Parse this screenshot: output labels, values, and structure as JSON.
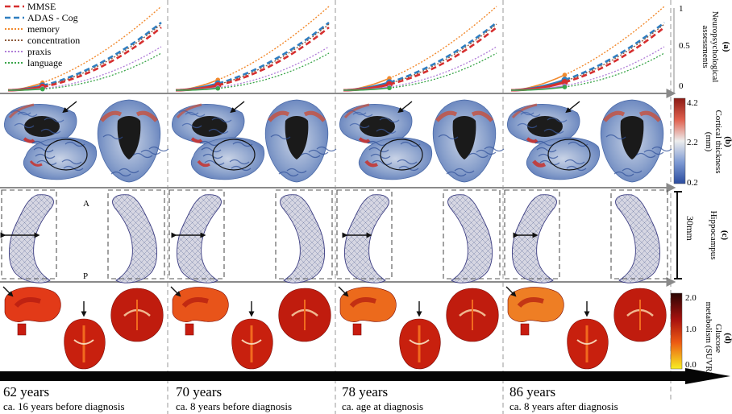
{
  "legend": [
    {
      "label": "MMSE",
      "color": "#d62f2f",
      "dash": "solid-dash"
    },
    {
      "label": "ADAS - Cog",
      "color": "#2f7ec0",
      "dash": "solid-dash"
    },
    {
      "label": "memory",
      "color": "#f28a2e",
      "dash": "dots"
    },
    {
      "label": "concentration",
      "color": "#8c5a3c",
      "dash": "dots"
    },
    {
      "label": "praxis",
      "color": "#b07ed8",
      "dash": "dots"
    },
    {
      "label": "language",
      "color": "#3aa54a",
      "dash": "dots"
    }
  ],
  "row_labels": {
    "a": {
      "letter": "(a)",
      "text": "Neuropsychological assessments",
      "line1": "Neuropsychological",
      "line2": "assessments"
    },
    "b": {
      "letter": "(b)",
      "text": "Cortical thickness (mm)",
      "line1": "Cortical thickness",
      "line2": "(mm)"
    },
    "c": {
      "letter": "(c)",
      "text": "Hippocampus"
    },
    "d": {
      "letter": "(d)",
      "text": "Glucose metabolism (SUVR)",
      "line1": "Glucose",
      "line2": "metabolism (SUVR)"
    }
  },
  "axis_a_ticks": [
    "1",
    "0.5",
    "0"
  ],
  "thickness_ticks": [
    "4.2",
    "2.2",
    "0.2"
  ],
  "glucose_ticks": [
    "2.0",
    "1.0",
    "0.0"
  ],
  "hippo_scale": "30mm",
  "hippo_orientation": {
    "anterior": "A",
    "posterior": "P"
  },
  "timepoints": [
    {
      "age": "62 years",
      "note": "ca. 16 years before diagnosis"
    },
    {
      "age": "70 years",
      "note": "ca. 8 years before diagnosis"
    },
    {
      "age": "78 years",
      "note": "ca. age at diagnosis"
    },
    {
      "age": "86 years",
      "note": "ca. 8 years after diagnosis"
    }
  ],
  "colors": {
    "thickness_low": "#3b5fb5",
    "thickness_mid": "#e6e6e6",
    "thickness_high": "#c8312c",
    "glucose_low": "#f5e51c",
    "glucose_mid": "#e2461c",
    "glucose_high": "#3a0a06",
    "axis_gray": "#8a8a8a"
  }
}
